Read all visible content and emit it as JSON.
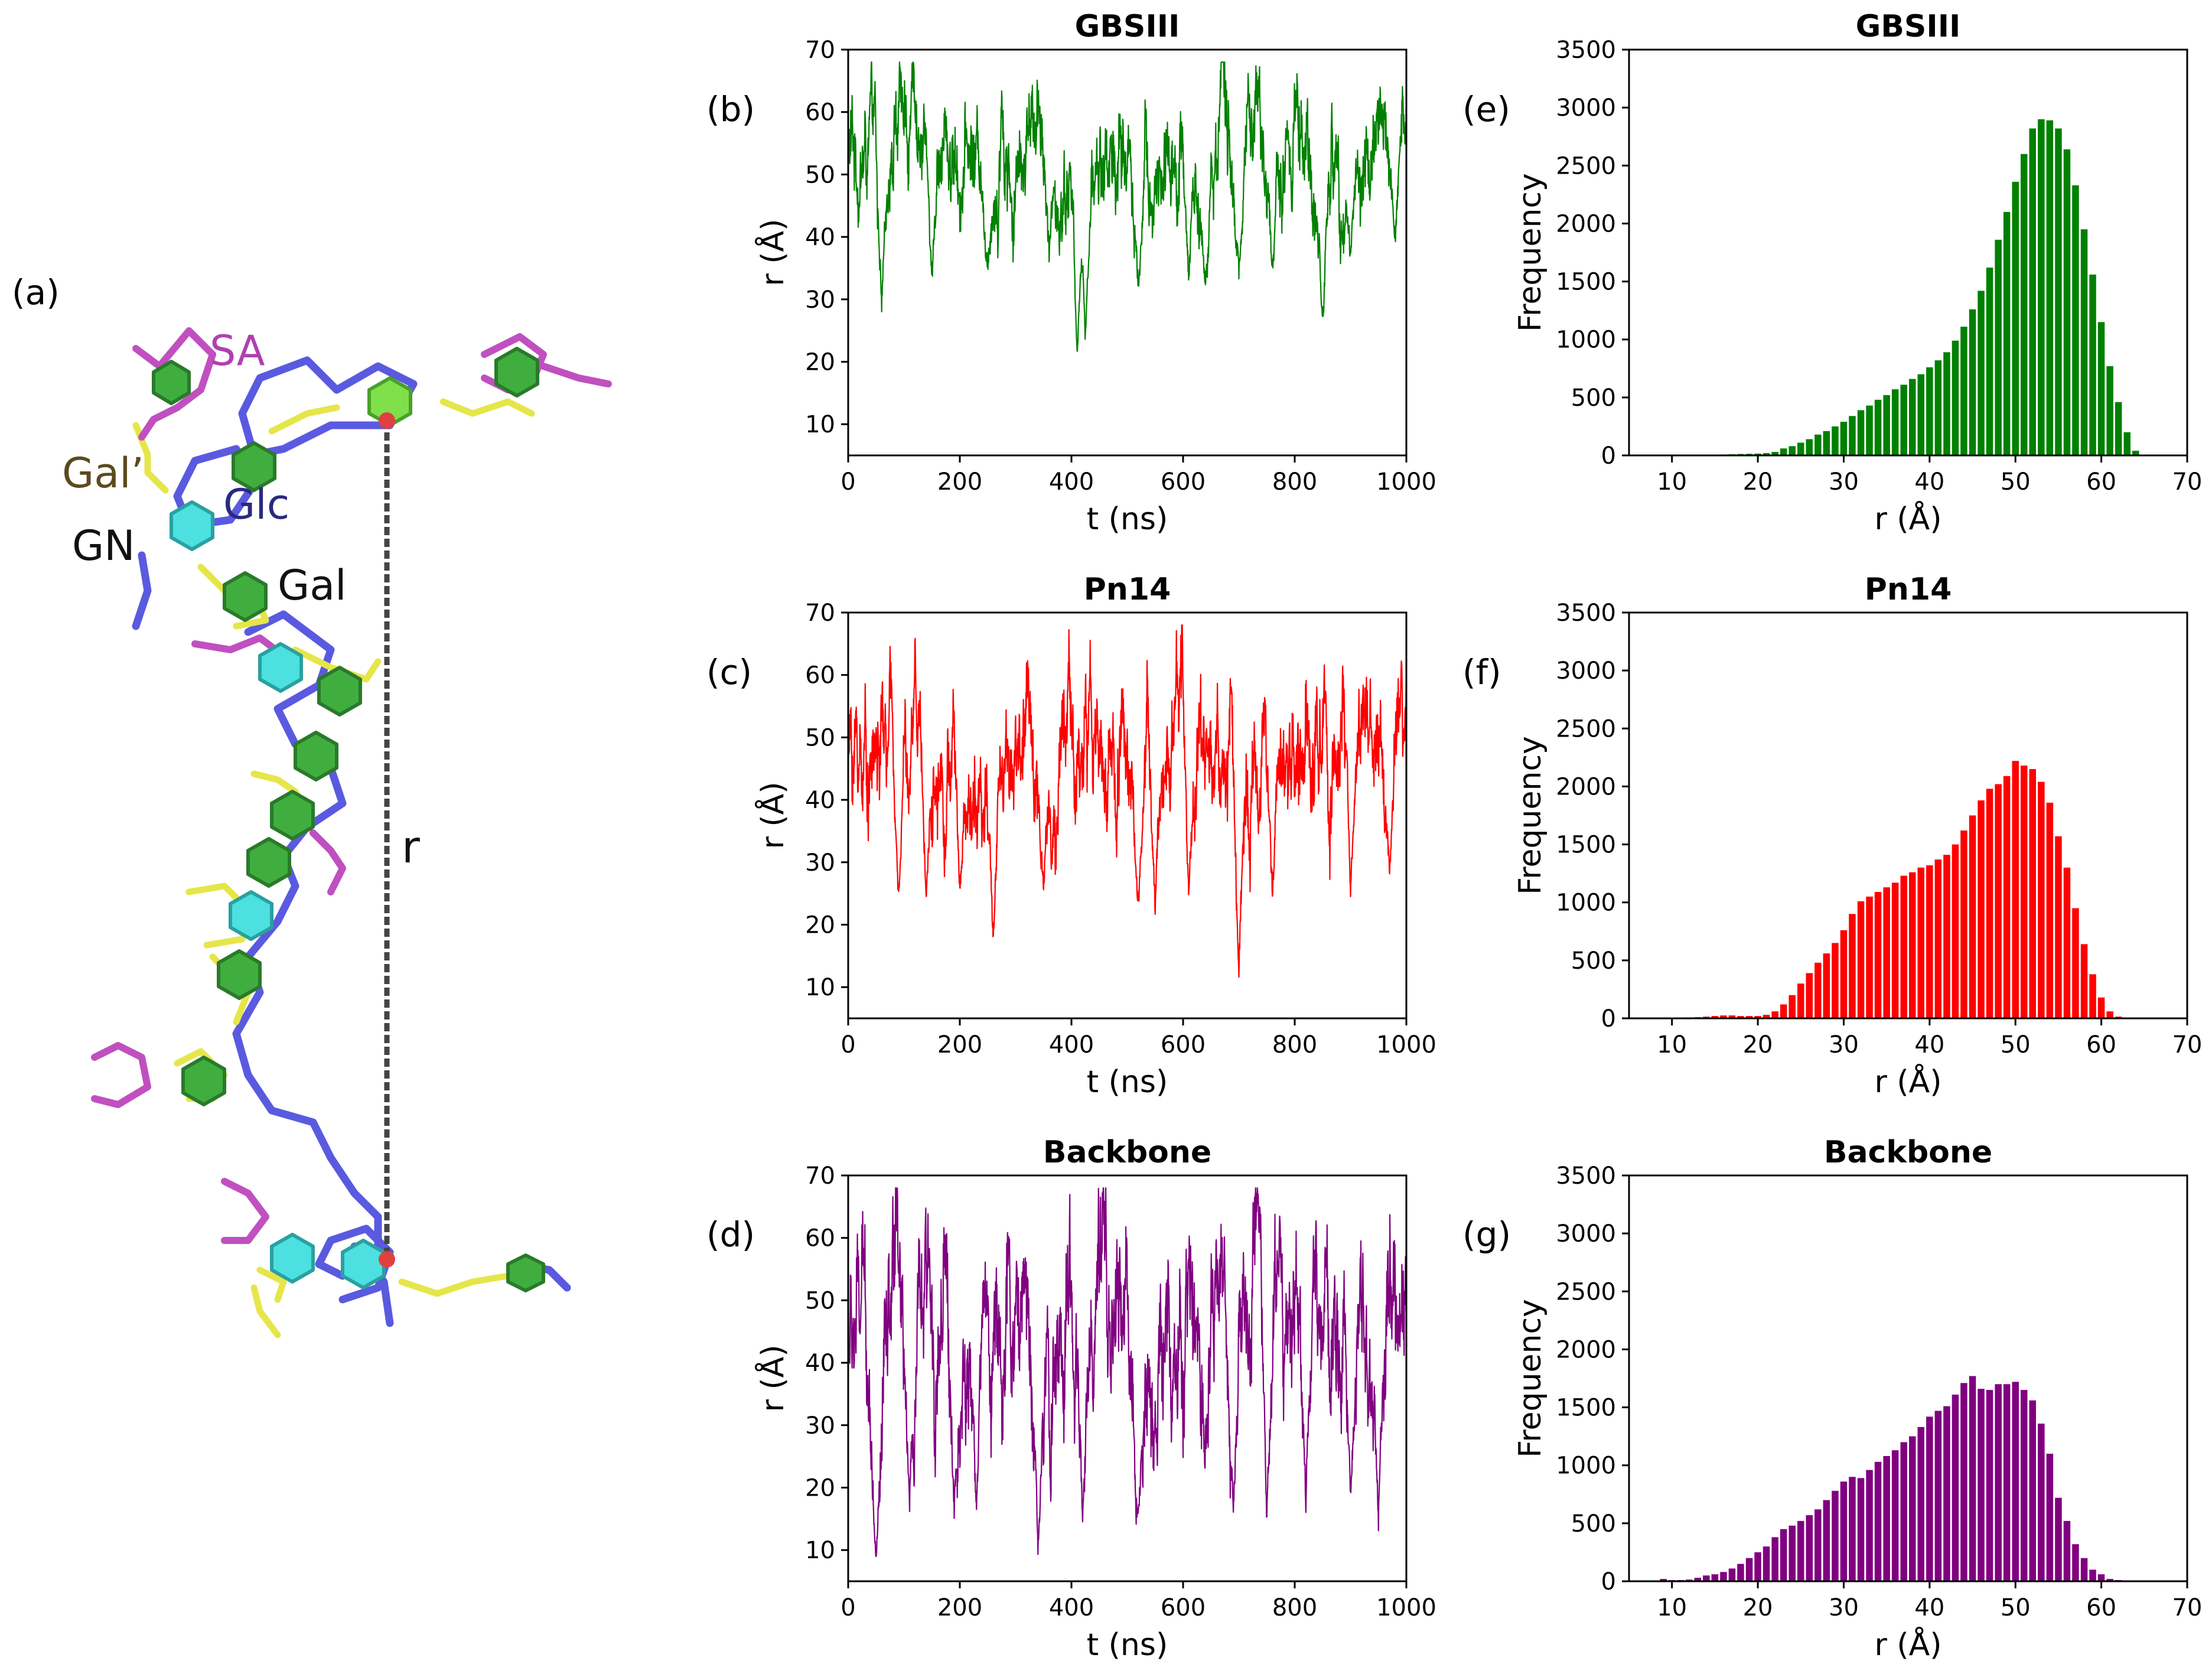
{
  "panel_labels": [
    "(a)",
    "(b)",
    "(c)",
    "(d)",
    "(e)",
    "(f)",
    "(g)"
  ],
  "molecule": {
    "labels": {
      "sa": "SA",
      "gal_prime": "Gal’",
      "glc": "Glc",
      "gn": "GN",
      "gal": "Gal",
      "r": "r"
    },
    "colors": {
      "sa": "#b040b0",
      "gal_prime": "#5c4a1e",
      "glc": "#2a2a80",
      "gn": "#111111",
      "gal": "#111111",
      "r": "#111111",
      "chain_blue": "#5a5ae0",
      "chain_yellow": "#e6e64a",
      "chain_magenta": "#c050c0",
      "ring_green": "#3fae3f",
      "ring_cyan": "#4ce0e0",
      "atom_red": "#e04040",
      "dash": "#444444"
    }
  },
  "chart_data": [
    {
      "id": "b",
      "type": "line",
      "title": "GBSIII",
      "xlabel": "t (ns)",
      "ylabel": "r (Å)",
      "xlim": [
        0,
        1000
      ],
      "ylim": [
        5,
        70
      ],
      "xticks": [
        0,
        200,
        400,
        600,
        800,
        1000
      ],
      "yticks": [
        10,
        20,
        30,
        40,
        50,
        60,
        70
      ],
      "color": "#008000",
      "mean": 53,
      "spread": 6.5,
      "dips": [
        [
          60,
          28
        ],
        [
          150,
          32
        ],
        [
          250,
          34
        ],
        [
          360,
          36
        ],
        [
          410,
          19
        ],
        [
          425,
          22
        ],
        [
          520,
          30
        ],
        [
          610,
          32
        ],
        [
          640,
          31
        ],
        [
          700,
          33
        ],
        [
          760,
          33
        ],
        [
          850,
          25
        ],
        [
          900,
          35
        ],
        [
          980,
          38
        ]
      ]
    },
    {
      "id": "c",
      "type": "line",
      "title": "Pn14",
      "xlabel": "t (ns)",
      "ylabel": "r (Å)",
      "xlim": [
        0,
        1000
      ],
      "ylim": [
        5,
        70
      ],
      "xticks": [
        0,
        200,
        400,
        600,
        800,
        1000
      ],
      "yticks": [
        10,
        20,
        30,
        40,
        50,
        60,
        70
      ],
      "color": "#ff0000",
      "mean": 48,
      "spread": 7.5,
      "dips": [
        [
          90,
          23
        ],
        [
          140,
          22
        ],
        [
          200,
          24
        ],
        [
          260,
          16
        ],
        [
          350,
          24
        ],
        [
          520,
          22
        ],
        [
          550,
          21
        ],
        [
          610,
          24
        ],
        [
          700,
          11
        ],
        [
          760,
          24
        ],
        [
          900,
          23
        ],
        [
          970,
          27
        ]
      ]
    },
    {
      "id": "d",
      "type": "line",
      "title": "Backbone",
      "xlabel": "t (ns)",
      "ylabel": "r (Å)",
      "xlim": [
        0,
        1000
      ],
      "ylim": [
        5,
        70
      ],
      "xticks": [
        0,
        200,
        400,
        600,
        800,
        1000
      ],
      "yticks": [
        10,
        20,
        30,
        40,
        50,
        60,
        70
      ],
      "color": "#800080",
      "mean": 45,
      "spread": 10,
      "dips": [
        [
          50,
          8
        ],
        [
          110,
          16
        ],
        [
          190,
          15
        ],
        [
          230,
          14
        ],
        [
          340,
          9
        ],
        [
          420,
          14
        ],
        [
          520,
          14
        ],
        [
          690,
          15
        ],
        [
          750,
          13
        ],
        [
          820,
          16
        ],
        [
          900,
          18
        ],
        [
          950,
          13
        ]
      ]
    },
    {
      "id": "e",
      "type": "bar",
      "title": "GBSIII",
      "xlabel": "r (Å)",
      "ylabel": "Frequency",
      "xlim": [
        5,
        70
      ],
      "ylim": [
        0,
        3500
      ],
      "xticks": [
        10,
        20,
        30,
        40,
        50,
        60,
        70
      ],
      "yticks": [
        0,
        500,
        1000,
        1500,
        2000,
        2500,
        3000,
        3500
      ],
      "color": "#008000",
      "bin_width": 1,
      "x": [
        15,
        16,
        17,
        18,
        19,
        20,
        21,
        22,
        23,
        24,
        25,
        26,
        27,
        28,
        29,
        30,
        31,
        32,
        33,
        34,
        35,
        36,
        37,
        38,
        39,
        40,
        41,
        42,
        43,
        44,
        45,
        46,
        47,
        48,
        49,
        50,
        51,
        52,
        53,
        54,
        55,
        56,
        57,
        58,
        59,
        60,
        61,
        62,
        63,
        64
      ],
      "values": [
        5,
        8,
        10,
        12,
        14,
        16,
        20,
        30,
        60,
        80,
        110,
        140,
        180,
        210,
        250,
        290,
        340,
        390,
        430,
        480,
        520,
        570,
        610,
        660,
        700,
        760,
        820,
        890,
        990,
        1110,
        1260,
        1420,
        1620,
        1860,
        2100,
        2360,
        2600,
        2820,
        2900,
        2890,
        2820,
        2640,
        2330,
        1950,
        1560,
        1150,
        770,
        460,
        200,
        40
      ]
    },
    {
      "id": "f",
      "type": "bar",
      "title": "Pn14",
      "xlabel": "r (Å)",
      "ylabel": "Frequency",
      "xlim": [
        5,
        70
      ],
      "ylim": [
        0,
        3500
      ],
      "xticks": [
        10,
        20,
        30,
        40,
        50,
        60,
        70
      ],
      "yticks": [
        0,
        500,
        1000,
        1500,
        2000,
        2500,
        3000,
        3500
      ],
      "color": "#ff0000",
      "bin_width": 1,
      "x": [
        10,
        11,
        12,
        13,
        14,
        15,
        16,
        17,
        18,
        19,
        20,
        21,
        22,
        23,
        24,
        25,
        26,
        27,
        28,
        29,
        30,
        31,
        32,
        33,
        34,
        35,
        36,
        37,
        38,
        39,
        40,
        41,
        42,
        43,
        44,
        45,
        46,
        47,
        48,
        49,
        50,
        51,
        52,
        53,
        54,
        55,
        56,
        57,
        58,
        59,
        60,
        61,
        62
      ],
      "values": [
        5,
        5,
        8,
        10,
        15,
        20,
        25,
        25,
        20,
        20,
        20,
        30,
        60,
        120,
        200,
        300,
        390,
        480,
        560,
        650,
        760,
        900,
        1010,
        1050,
        1090,
        1130,
        1170,
        1230,
        1260,
        1300,
        1320,
        1370,
        1410,
        1500,
        1620,
        1750,
        1880,
        1980,
        2020,
        2090,
        2220,
        2180,
        2150,
        2040,
        1860,
        1570,
        1300,
        950,
        640,
        380,
        180,
        60,
        15
      ]
    },
    {
      "id": "g",
      "type": "bar",
      "title": "Backbone",
      "xlabel": "r (Å)",
      "ylabel": "Frequency",
      "xlim": [
        5,
        70
      ],
      "ylim": [
        0,
        3500
      ],
      "xticks": [
        10,
        20,
        30,
        40,
        50,
        60,
        70
      ],
      "yticks": [
        0,
        500,
        1000,
        1500,
        2000,
        2500,
        3000,
        3500
      ],
      "color": "#800080",
      "bin_width": 1,
      "x": [
        9,
        10,
        11,
        12,
        13,
        14,
        15,
        16,
        17,
        18,
        19,
        20,
        21,
        22,
        23,
        24,
        25,
        26,
        27,
        28,
        29,
        30,
        31,
        32,
        33,
        34,
        35,
        36,
        37,
        38,
        39,
        40,
        41,
        42,
        43,
        44,
        45,
        46,
        47,
        48,
        49,
        50,
        51,
        52,
        53,
        54,
        55,
        56,
        57,
        58,
        59,
        60,
        61,
        62,
        63,
        64
      ],
      "values": [
        20,
        10,
        10,
        15,
        30,
        50,
        60,
        80,
        110,
        150,
        200,
        250,
        300,
        380,
        450,
        480,
        520,
        570,
        620,
        700,
        780,
        860,
        900,
        890,
        960,
        1030,
        1080,
        1130,
        1200,
        1250,
        1330,
        1420,
        1470,
        1510,
        1610,
        1710,
        1770,
        1660,
        1650,
        1700,
        1700,
        1720,
        1650,
        1560,
        1360,
        1100,
        720,
        520,
        320,
        200,
        100,
        60,
        20,
        10,
        5,
        5
      ]
    }
  ]
}
